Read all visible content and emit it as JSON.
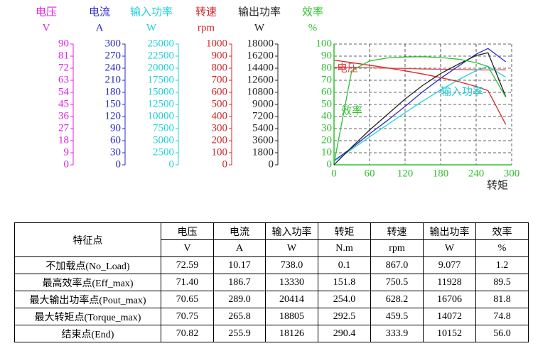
{
  "chart_data": {
    "type": "line",
    "x_label": "转矩",
    "x": [
      0,
      30,
      60,
      90,
      120,
      150,
      180,
      210,
      240,
      260,
      290
    ],
    "xlim": [
      0,
      300
    ],
    "xticks": [
      0,
      60,
      120,
      180,
      240,
      300
    ],
    "grid": true,
    "series": [
      {
        "name": "电压",
        "unit": "V",
        "color": "#e020e0",
        "line_color": "#e04848",
        "ylim": [
          0,
          90
        ],
        "yticks": [
          0,
          9,
          18,
          27,
          36,
          45,
          54,
          63,
          72,
          81,
          90
        ],
        "values": [
          72.59,
          72.5,
          72.3,
          72.0,
          71.8,
          71.4,
          71.2,
          71.0,
          70.8,
          70.65,
          70.82
        ]
      },
      {
        "name": "电流",
        "unit": "A",
        "color": "#2a2ac8",
        "line_color": "#2a2ac8",
        "ylim": [
          0,
          300
        ],
        "yticks": [
          0,
          30,
          60,
          90,
          120,
          150,
          180,
          210,
          240,
          270,
          300
        ],
        "values": [
          10.17,
          42,
          77,
          110,
          145,
          182,
          215,
          245,
          275,
          289,
          255.9
        ]
      },
      {
        "name": "输入功率",
        "unit": "W",
        "color": "#22d0d8",
        "line_color": "#22d0d8",
        "ylim": [
          0,
          25000
        ],
        "yticks": [
          0,
          2500,
          5000,
          7500,
          10000,
          12500,
          15000,
          17500,
          20000,
          22500,
          25000
        ],
        "values": [
          738,
          3200,
          5800,
          8300,
          10800,
          13200,
          15500,
          17600,
          19500,
          20400,
          18126
        ]
      },
      {
        "name": "转速",
        "unit": "rpm",
        "color": "#d02828",
        "line_color": "#d02828",
        "ylim": [
          0,
          1000
        ],
        "yticks": [
          0,
          100,
          200,
          300,
          400,
          500,
          600,
          700,
          800,
          900,
          1000
        ],
        "values": [
          867,
          846,
          825,
          803,
          778,
          752,
          722,
          690,
          648,
          615,
          334
        ]
      },
      {
        "name": "输出功率",
        "unit": "W",
        "color": "#222222",
        "line_color": "#222222",
        "ylim": [
          0,
          18000
        ],
        "yticks": [
          0,
          1800,
          3600,
          5400,
          7200,
          9000,
          10800,
          12600,
          14400,
          16200,
          18000
        ],
        "values": [
          9,
          2650,
          5180,
          7500,
          9800,
          11850,
          13600,
          15000,
          16300,
          16700,
          10152
        ]
      },
      {
        "name": "效率",
        "unit": "%",
        "color": "#30c030",
        "line_color": "#30c030",
        "ylim": [
          0,
          100
        ],
        "yticks": [
          0,
          10,
          20,
          30,
          40,
          50,
          60,
          70,
          80,
          90,
          100
        ],
        "values": [
          1.2,
          78,
          86,
          88.5,
          89.3,
          89.5,
          88.8,
          87.5,
          84.5,
          81.5,
          56
        ]
      }
    ]
  },
  "table": {
    "corner": "特征点",
    "header": [
      "电压",
      "电流",
      "输入功率",
      "转矩",
      "转速",
      "输出功率",
      "效率"
    ],
    "units": [
      "V",
      "A",
      "W",
      "N.m",
      "rpm",
      "W",
      "%"
    ],
    "rows": [
      [
        "不加载点(No_Load)",
        "72.59",
        "10.17",
        "738.0",
        "0.1",
        "867.0",
        "9.077",
        "1.2"
      ],
      [
        "最高效率点(Eff_max)",
        "71.40",
        "186.7",
        "13330",
        "151.8",
        "750.5",
        "11928",
        "89.5"
      ],
      [
        "最大输出功率点(Pout_max)",
        "70.65",
        "289.0",
        "20414",
        "254.0",
        "628.2",
        "16706",
        "81.8"
      ],
      [
        "最大转矩点(Torque_max)",
        "70.75",
        "265.8",
        "18805",
        "292.5",
        "459.5",
        "14072",
        "74.8"
      ],
      [
        "结束点(End)",
        "70.82",
        "255.9",
        "18126",
        "290.4",
        "333.9",
        "10152",
        "56.0"
      ]
    ]
  }
}
